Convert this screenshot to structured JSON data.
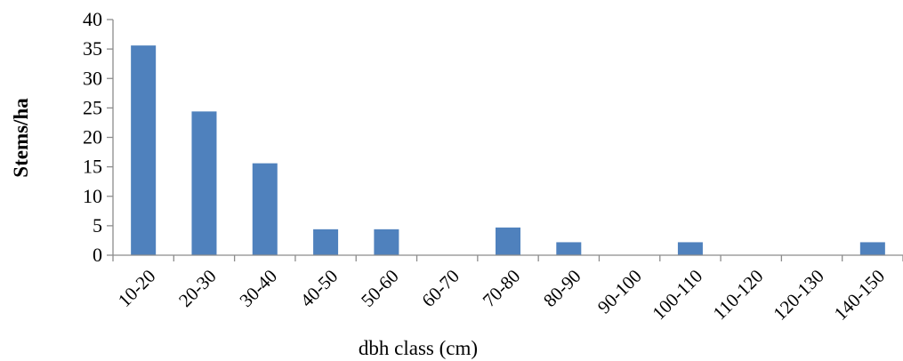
{
  "chart_data": {
    "type": "bar",
    "title": "",
    "xlabel": "dbh class (cm)",
    "ylabel": "Stems/ha",
    "ylim": [
      0,
      40
    ],
    "yticks": [
      0,
      5,
      10,
      15,
      20,
      25,
      30,
      35,
      40
    ],
    "grid": false,
    "legend": "none",
    "categories": [
      "10-20",
      "20-30",
      "30-40",
      "40-50",
      "50-60",
      "60-70",
      "70-80",
      "80-90",
      "90-100",
      "100-110",
      "110-120",
      "120-130",
      "140-150"
    ],
    "values": [
      35.6,
      24.4,
      15.6,
      4.4,
      4.4,
      0,
      4.7,
      2.2,
      0,
      2.2,
      0,
      0,
      2.2
    ],
    "bar_color": "#4f81bd",
    "axis_color": "#8c8c8c"
  }
}
